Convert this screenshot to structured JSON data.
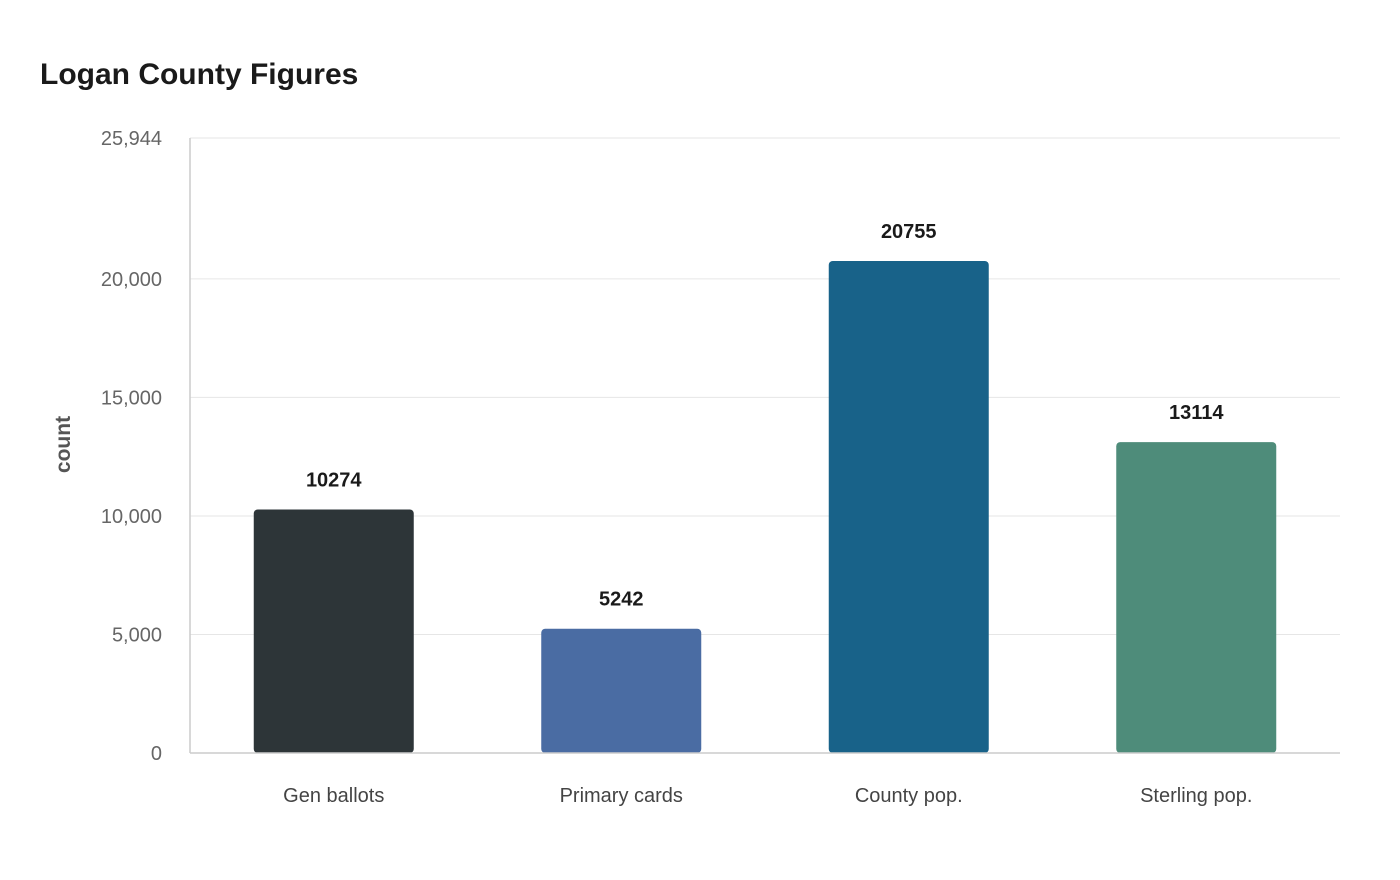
{
  "chart_data": {
    "type": "bar",
    "title": "Logan County Figures",
    "xlabel": "",
    "ylabel": "count",
    "categories": [
      "Gen ballots",
      "Primary cards",
      "County pop.",
      "Sterling pop."
    ],
    "values": [
      10274,
      5242,
      20755,
      13114
    ],
    "data_labels": [
      "10274",
      "5242",
      "20755",
      "13114"
    ],
    "colors": [
      "#2d3538",
      "#4a6ca3",
      "#186289",
      "#4e8c7a"
    ],
    "ylim": [
      0,
      25944
    ],
    "yticks": [
      0,
      5000,
      10000,
      15000,
      20000,
      25944
    ],
    "ytick_labels": [
      "0",
      "5,000",
      "10,000",
      "15,000",
      "20,000",
      "25,944"
    ],
    "grid": true,
    "legend": "none"
  }
}
